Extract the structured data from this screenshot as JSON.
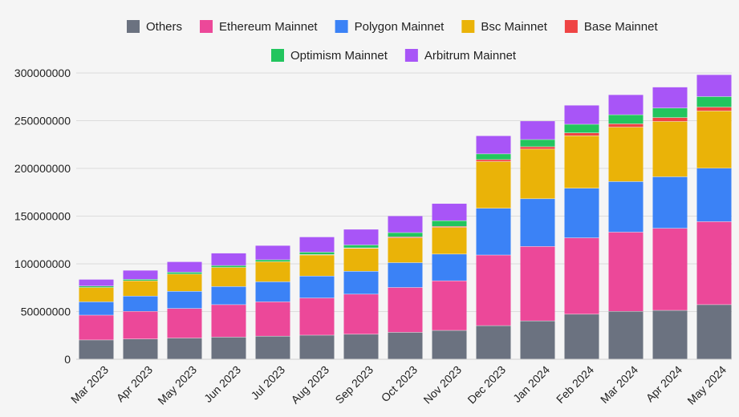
{
  "chart_data": {
    "type": "bar",
    "stacked": true,
    "title": "",
    "xlabel": "",
    "ylabel": "",
    "ylim": [
      0,
      300000000
    ],
    "yticks": [
      "0",
      "50000000",
      "100000000",
      "150000000",
      "200000000",
      "250000000",
      "300000000"
    ],
    "grid": true,
    "legend_position": "top",
    "categories": [
      "Mar 2023",
      "Apr 2023",
      "May 2023",
      "Jun 2023",
      "Jul 2023",
      "Aug 2023",
      "Sep 2023",
      "Oct 2023",
      "Nov 2023",
      "Dec 2023",
      "Jan 2024",
      "Feb 2024",
      "Mar 2024",
      "Apr 2024",
      "May 2024"
    ],
    "series": [
      {
        "name": "Others",
        "color": "#6b7280",
        "values": [
          20000000,
          21000000,
          22000000,
          23000000,
          24000000,
          25000000,
          26000000,
          28000000,
          30000000,
          35000000,
          40000000,
          47000000,
          50000000,
          51000000,
          57000000
        ]
      },
      {
        "name": "Ethereum Mainnet",
        "color": "#ec4899",
        "values": [
          26000000,
          29000000,
          31000000,
          34000000,
          36000000,
          39000000,
          42000000,
          47000000,
          52000000,
          74000000,
          78000000,
          80000000,
          83000000,
          86000000,
          87000000
        ]
      },
      {
        "name": "Polygon Mainnet",
        "color": "#3b82f6",
        "values": [
          14000000,
          16000000,
          18000000,
          19000000,
          21000000,
          23000000,
          24000000,
          26000000,
          28000000,
          49000000,
          50000000,
          52000000,
          53000000,
          54000000,
          56000000
        ]
      },
      {
        "name": "Bsc Mainnet",
        "color": "#eab308",
        "values": [
          15000000,
          16000000,
          18000000,
          20000000,
          21000000,
          22000000,
          24000000,
          26000000,
          28000000,
          49000000,
          52000000,
          55000000,
          57000000,
          58000000,
          60000000
        ]
      },
      {
        "name": "Base Mainnet",
        "color": "#ef4444",
        "values": [
          0,
          0,
          0,
          0,
          0,
          500000,
          500000,
          1000000,
          1000000,
          2000000,
          2500000,
          3000000,
          3500000,
          4000000,
          4000000
        ]
      },
      {
        "name": "Optimism Mainnet",
        "color": "#22c55e",
        "values": [
          1500000,
          1500000,
          2000000,
          2000000,
          2000000,
          2500000,
          3000000,
          4500000,
          6000000,
          6000000,
          7500000,
          9000000,
          9500000,
          10000000,
          11000000
        ]
      },
      {
        "name": "Arbitrum Mainnet",
        "color": "#a855f7",
        "values": [
          7000000,
          9500000,
          11000000,
          13000000,
          15000000,
          16000000,
          16500000,
          17500000,
          18000000,
          19000000,
          19500000,
          20000000,
          21000000,
          22000000,
          23000000
        ]
      }
    ]
  }
}
